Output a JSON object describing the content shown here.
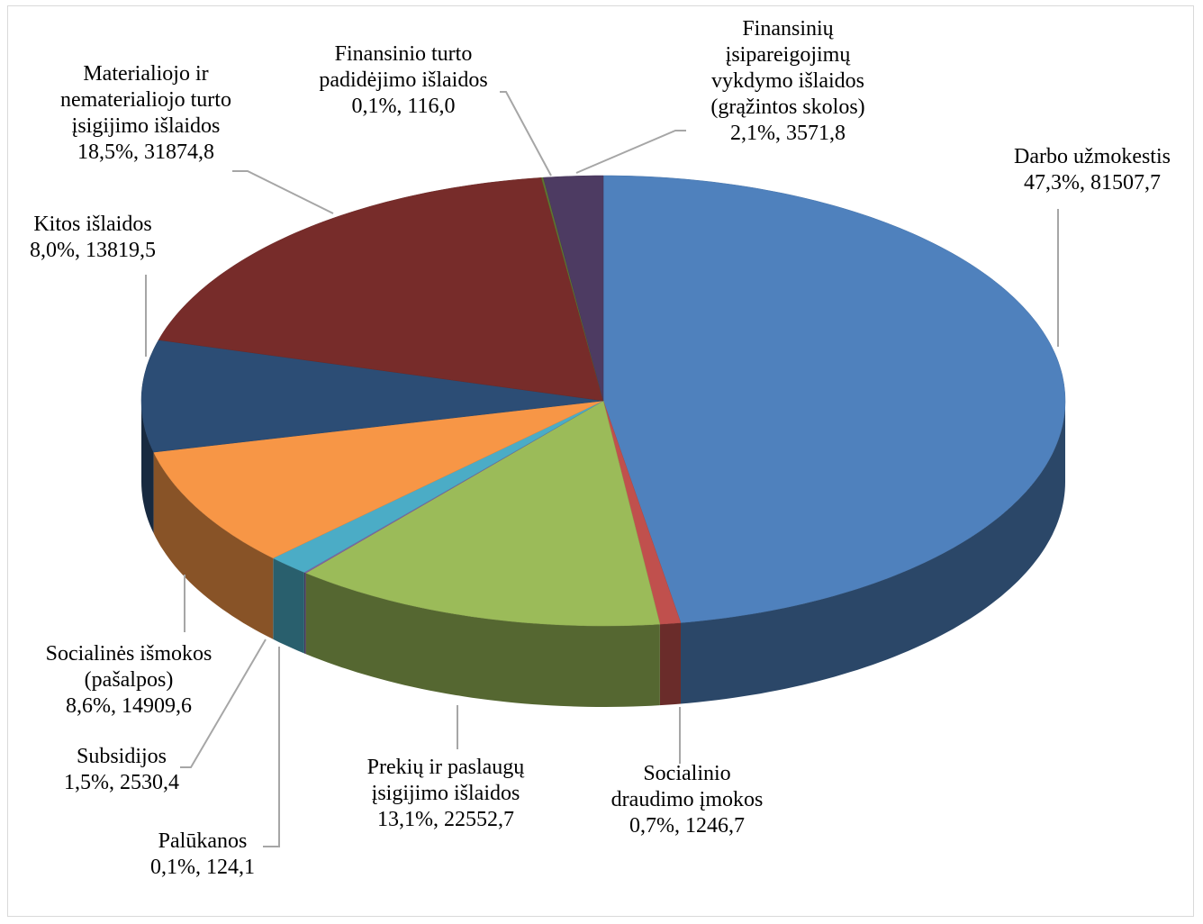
{
  "chart_data": {
    "type": "pie3d",
    "categories": [
      "Darbo užmokestis",
      "Socialinio draudimo įmokos",
      "Prekių ir paslaugų įsigijimo išlaidos",
      "Palūkanos",
      "Subsidijos",
      "Socialinės išmokos (pašalpos)",
      "Kitos išlaidos",
      "Materialiojo ir nematerialiojo turto įsigijimo išlaidos",
      "Finansinio turto padidėjimo išlaidos",
      "Finansinių įsipareigojimų vykdymo išlaidos (grąžintos skolos)"
    ],
    "values": [
      81507.7,
      1246.7,
      22552.7,
      124.1,
      2530.4,
      14909.6,
      13819.5,
      31874.8,
      116.0,
      3571.8
    ],
    "value_labels": [
      "47,3%, 81507,7",
      "0,7%, 1246,7",
      "13,1%, 22552,7",
      "0,1%, 124,1",
      "1,5%, 2530,4",
      "8,6%, 14909,6",
      "8,0%, 13819,5",
      "18,5%, 31874,8",
      "0,1%, 116,0",
      "2,1%, 3571,8"
    ],
    "colors": [
      "#4f81bd",
      "#c0504d",
      "#9bbb59",
      "#8064a2",
      "#4bacc6",
      "#f79646",
      "#2c4d75",
      "#772c2a",
      "#5f7530",
      "#4d3b62"
    ]
  }
}
